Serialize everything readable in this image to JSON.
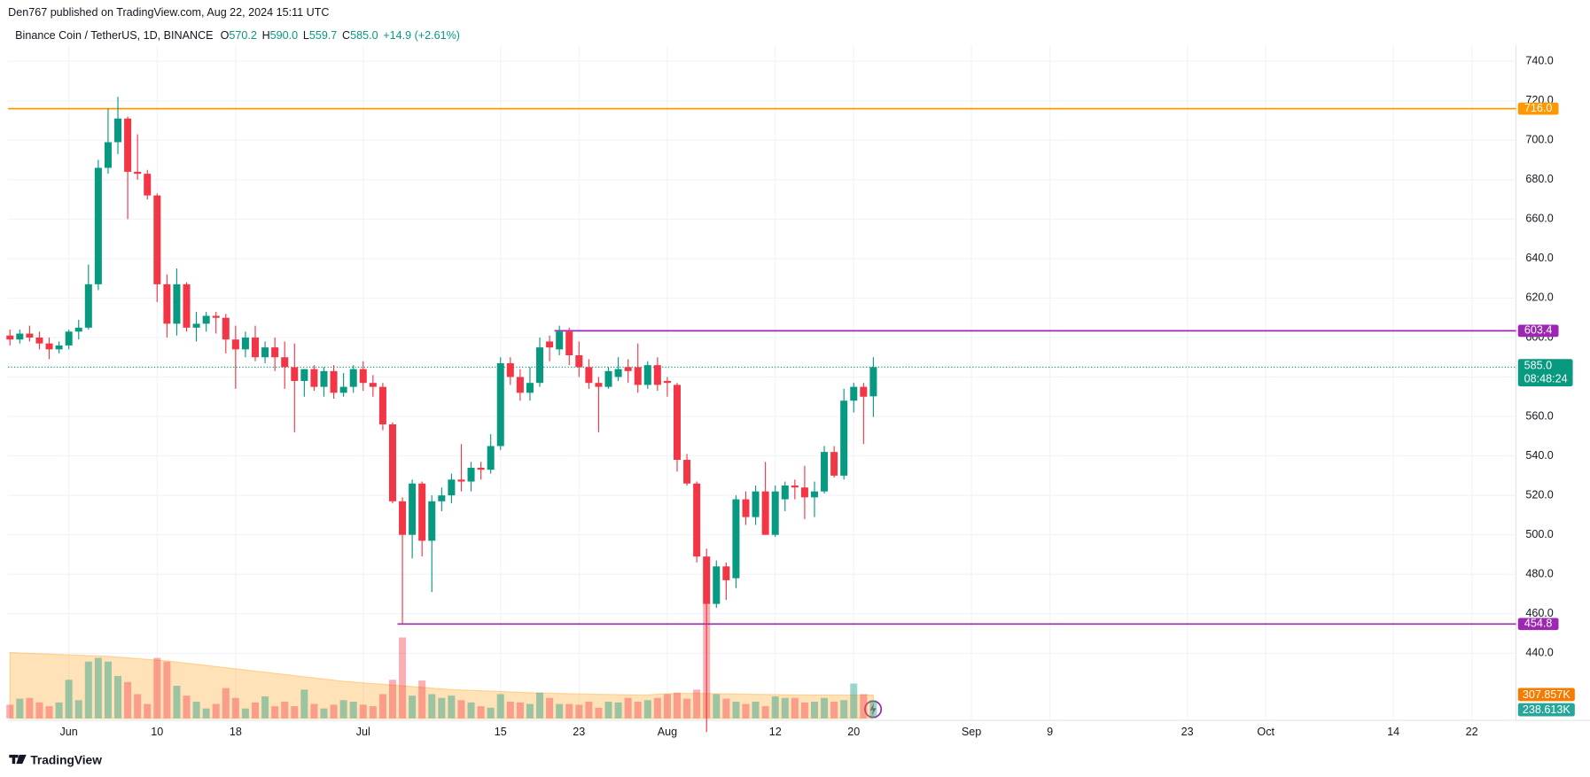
{
  "header": {
    "published": "Den767 published on TradingView.com, Aug 22, 2024 15:11 UTC"
  },
  "chart_data": {
    "type": "candlestick",
    "title": "Binance Coin / TetherUS, 1D, BINANCE",
    "quote": [
      {
        "key": "O",
        "text": "570.2"
      },
      {
        "key": "H",
        "text": "590.0"
      },
      {
        "key": "L",
        "text": "559.7"
      },
      {
        "key": "C",
        "text": "585.0"
      }
    ],
    "change": "+14.9 (+2.61%)",
    "categories": [
      null,
      null,
      null,
      null,
      null,
      null,
      "Jun",
      null,
      null,
      null,
      null,
      null,
      null,
      null,
      null,
      "10",
      null,
      null,
      null,
      null,
      null,
      null,
      null,
      "18",
      null,
      null,
      null,
      null,
      null,
      null,
      null,
      null,
      null,
      null,
      null,
      null,
      "Jul",
      null,
      null,
      null,
      null,
      null,
      null,
      null,
      null,
      null,
      null,
      null,
      null,
      null,
      "15",
      null,
      null,
      null,
      null,
      null,
      null,
      null,
      "23",
      null,
      null,
      null,
      null,
      null,
      null,
      null,
      null,
      "Aug",
      null,
      null,
      null,
      null,
      null,
      null,
      null,
      null,
      null,
      null,
      "12",
      null,
      null,
      null,
      null,
      null,
      null,
      null,
      "20",
      null,
      null,
      null,
      null,
      null,
      null,
      null,
      null,
      null,
      null,
      null,
      "Sep",
      null,
      null,
      null,
      null,
      null,
      null,
      null,
      "9",
      null,
      null,
      null,
      null,
      null,
      null,
      null,
      null,
      null,
      null,
      null,
      null,
      null,
      "23",
      null,
      null,
      null,
      null,
      null,
      null,
      null,
      "Oct",
      null,
      null,
      null,
      null,
      null,
      null,
      null,
      null,
      null,
      null,
      null,
      null,
      "14",
      null,
      null,
      null,
      null,
      null,
      null,
      null,
      "22",
      null,
      null,
      null,
      null
    ],
    "open": [
      601,
      599,
      602,
      600,
      597,
      594,
      596,
      603,
      605,
      627,
      686,
      699,
      711,
      684,
      683,
      672,
      627,
      607,
      627,
      605,
      607,
      611,
      610,
      599,
      594,
      600,
      590,
      595,
      590,
      585,
      578,
      584,
      575,
      583,
      572,
      575,
      584,
      577,
      575,
      556,
      517,
      500,
      526,
      497,
      517,
      520,
      528,
      527,
      534,
      533,
      545,
      587,
      580,
      572,
      577,
      598,
      594,
      603,
      591,
      585,
      577,
      575,
      580,
      585,
      585,
      576,
      586,
      578,
      576,
      538,
      526,
      489,
      465,
      484,
      478,
      518,
      509,
      522,
      500,
      518,
      525,
      524,
      519,
      522,
      542,
      530,
      568,
      575,
      570.2,
      null,
      null,
      null,
      null,
      null,
      null,
      null,
      null,
      null,
      null,
      null,
      null,
      null,
      null,
      null,
      null,
      null,
      null,
      null,
      null,
      null,
      null,
      null,
      null,
      null,
      null,
      null,
      null,
      null,
      null,
      null,
      null,
      null,
      null,
      null,
      null,
      null,
      null,
      null,
      null,
      null,
      null,
      null,
      null,
      null,
      null,
      null,
      null,
      null,
      null,
      null,
      null,
      null,
      null,
      null,
      null,
      null,
      null,
      null,
      null,
      null,
      null,
      null,
      null,
      null
    ],
    "high": [
      604,
      604,
      606,
      603,
      600,
      598,
      604,
      609,
      637,
      690,
      716,
      722,
      712,
      703,
      685,
      673,
      632,
      635,
      628,
      613,
      613,
      613,
      612,
      606,
      603,
      606,
      598,
      600,
      598,
      597,
      584,
      586,
      585,
      586,
      582,
      586,
      588,
      581,
      577,
      557,
      519,
      528,
      527,
      520,
      524,
      531,
      546,
      537,
      537,
      551,
      590,
      590,
      584,
      585,
      600,
      601,
      606,
      605,
      598,
      589,
      580,
      585,
      590,
      589,
      597,
      588,
      590,
      580,
      577,
      541,
      527,
      493,
      487,
      486,
      520,
      522,
      525,
      537,
      525,
      527,
      528,
      535,
      527,
      545,
      545,
      574,
      577,
      577,
      590,
      null,
      null,
      null,
      null,
      null,
      null,
      null,
      null,
      null,
      null,
      null,
      null,
      null,
      null,
      null,
      null,
      null,
      null,
      null,
      null,
      null,
      null,
      null,
      null,
      null,
      null,
      null,
      null,
      null,
      null,
      null,
      null,
      null,
      null,
      null,
      null,
      null,
      null,
      null,
      null,
      null,
      null,
      null,
      null,
      null,
      null,
      null,
      null,
      null,
      null,
      null,
      null,
      null,
      null,
      null,
      null,
      null,
      null,
      null,
      null,
      null,
      null,
      null,
      null,
      null
    ],
    "low": [
      596,
      597,
      598,
      594,
      589,
      592,
      594,
      599,
      604,
      624,
      683,
      693,
      660,
      680,
      670,
      618,
      600,
      601,
      603,
      598,
      603,
      602,
      592,
      574,
      590,
      588,
      587,
      583,
      574,
      552,
      570,
      573,
      570,
      569,
      570,
      572,
      573,
      570,
      553,
      516,
      454.8,
      488,
      489,
      471,
      512,
      516,
      522,
      522,
      528,
      531,
      543,
      576,
      568,
      568,
      575,
      588,
      591,
      586,
      580,
      574,
      552,
      574,
      578,
      577,
      572,
      574,
      573,
      570,
      532,
      525,
      486,
      400,
      463,
      467,
      473,
      505,
      505,
      500,
      499,
      512,
      518,
      508,
      509,
      521,
      529,
      528,
      562,
      546,
      559.7,
      null,
      null,
      null,
      null,
      null,
      null,
      null,
      null,
      null,
      null,
      null,
      null,
      null,
      null,
      null,
      null,
      null,
      null,
      null,
      null,
      null,
      null,
      null,
      null,
      null,
      null,
      null,
      null,
      null,
      null,
      null,
      null,
      null,
      null,
      null,
      null,
      null,
      null,
      null,
      null,
      null,
      null,
      null,
      null,
      null,
      null,
      null,
      null,
      null,
      null,
      null,
      null,
      null,
      null,
      null,
      null,
      null,
      null,
      null,
      null,
      null,
      null,
      null,
      null,
      null
    ],
    "close": [
      599,
      602,
      600,
      597,
      594,
      596,
      603,
      605,
      627,
      686,
      699,
      711,
      684,
      683,
      672,
      627,
      607,
      627,
      605,
      607,
      611,
      610,
      599,
      594,
      600,
      590,
      595,
      590,
      585,
      578,
      584,
      575,
      583,
      572,
      575,
      584,
      577,
      575,
      556,
      517,
      500,
      526,
      497,
      517,
      520,
      528,
      527,
      534,
      533,
      545,
      587,
      580,
      572,
      577,
      595,
      595,
      603,
      591,
      585,
      577,
      575,
      583,
      584,
      583,
      576,
      586,
      576,
      577,
      538,
      526,
      489,
      465,
      484,
      477,
      518,
      509,
      522,
      500,
      522,
      525,
      524,
      519,
      522,
      542,
      530,
      568,
      575,
      570,
      585,
      null,
      null,
      null,
      null,
      null,
      null,
      null,
      null,
      null,
      null,
      null,
      null,
      null,
      null,
      null,
      null,
      null,
      null,
      null,
      null,
      null,
      null,
      null,
      null,
      null,
      null,
      null,
      null,
      null,
      null,
      null,
      null,
      null,
      null,
      null,
      null,
      null,
      null,
      null,
      null,
      null,
      null,
      null,
      null,
      null,
      null,
      null,
      null,
      null,
      null,
      null,
      null,
      null,
      null,
      null,
      null,
      null,
      null,
      null,
      null,
      null,
      null,
      null,
      null,
      null
    ],
    "colors": {
      "up": "#089981",
      "down": "#f23645",
      "text": "#089981"
    },
    "ylim": [
      407,
      748
    ],
    "yticks": [
      {
        "value": 440,
        "label": "440.0"
      },
      {
        "value": 460,
        "label": "460.0"
      },
      {
        "value": 480,
        "label": "480.0"
      },
      {
        "value": 500,
        "label": "500.0"
      },
      {
        "value": 520,
        "label": "520.0"
      },
      {
        "value": 540,
        "label": "540.0"
      },
      {
        "value": 560,
        "label": "560.0"
      },
      {
        "value": 580,
        "label": "580.0"
      },
      {
        "value": 600,
        "label": "600.0"
      },
      {
        "value": 620,
        "label": "620.0"
      },
      {
        "value": 640,
        "label": "640.0"
      },
      {
        "value": 660,
        "label": "660.0"
      },
      {
        "value": 680,
        "label": "680.0"
      },
      {
        "value": 700,
        "label": "700.0"
      },
      {
        "value": 720,
        "label": "720.0"
      },
      {
        "value": 740,
        "label": "740.0"
      }
    ],
    "grid": true,
    "last_price": {
      "value": 585,
      "label": "585.0",
      "countdown": "08:48:24"
    },
    "levels": [
      {
        "value": 716,
        "label": "716.0",
        "color": "#ff9800",
        "from": 0
      },
      {
        "value": 603.4,
        "label": "603.4",
        "color": "#9c27b0",
        "from": 56
      },
      {
        "value": 454.8,
        "label": "454.8",
        "color": "#9c27b0",
        "from": 40
      }
    ],
    "volume": {
      "values": [
        180,
        260,
        270,
        210,
        160,
        210,
        510,
        240,
        750,
        800,
        750,
        560,
        480,
        320,
        190,
        800,
        750,
        430,
        300,
        220,
        130,
        190,
        400,
        270,
        130,
        210,
        290,
        160,
        220,
        160,
        380,
        190,
        130,
        180,
        240,
        220,
        180,
        160,
        320,
        510,
        1070,
        300,
        500,
        320,
        270,
        300,
        240,
        210,
        160,
        140,
        320,
        220,
        210,
        190,
        340,
        270,
        190,
        190,
        180,
        220,
        140,
        220,
        210,
        270,
        220,
        240,
        270,
        320,
        340,
        260,
        380,
        1520,
        320,
        260,
        220,
        190,
        220,
        160,
        290,
        270,
        270,
        210,
        220,
        270,
        220,
        240,
        460,
        320,
        238.613,
        null,
        null,
        null,
        null,
        null,
        null,
        null,
        null,
        null,
        null,
        null,
        null,
        null,
        null,
        null,
        null,
        null,
        null,
        null,
        null,
        null,
        null,
        null,
        null,
        null,
        null,
        null,
        null,
        null,
        null,
        null,
        null,
        null,
        null,
        null,
        null,
        null,
        null,
        null,
        null,
        null,
        null,
        null,
        null,
        null,
        null,
        null,
        null,
        null,
        null,
        null,
        null,
        null,
        null,
        null,
        null,
        null,
        null,
        null,
        null,
        null,
        null,
        null,
        null,
        null
      ],
      "ma": [
        870,
        865,
        860,
        855,
        850,
        845,
        840,
        835,
        830,
        825,
        820,
        810,
        800,
        790,
        780,
        770,
        760,
        745,
        730,
        715,
        700,
        685,
        670,
        655,
        640,
        625,
        610,
        595,
        580,
        565,
        550,
        535,
        520,
        505,
        490,
        480,
        470,
        460,
        450,
        440,
        430,
        420,
        410,
        400,
        390,
        380,
        375,
        370,
        365,
        360,
        355,
        350,
        345,
        340,
        335,
        332,
        329,
        326,
        323,
        320,
        318,
        316,
        314,
        312,
        310,
        310,
        320,
        325,
        328,
        330,
        330,
        328,
        326,
        324,
        322,
        320,
        318,
        316,
        314,
        312,
        311,
        310,
        309,
        309,
        308,
        308,
        308,
        308,
        307.857,
        null,
        null,
        null,
        null,
        null,
        null,
        null,
        null,
        null,
        null,
        null,
        null,
        null,
        null,
        null,
        null,
        null,
        null,
        null,
        null,
        null,
        null,
        null,
        null,
        null,
        null,
        null,
        null,
        null,
        null,
        null,
        null,
        null,
        null,
        null,
        null,
        null,
        null,
        null,
        null,
        null,
        null,
        null,
        null,
        null,
        null,
        null,
        null,
        null,
        null,
        null,
        null,
        null,
        null,
        null,
        null,
        null,
        null,
        null,
        null,
        null,
        null,
        null,
        null,
        null
      ],
      "ylim": [
        0,
        8900
      ],
      "value_label": "238.613K",
      "ma_label": "307.857K",
      "ma_color": "#ff9800"
    }
  },
  "footer": {
    "brand": "TradingView"
  }
}
